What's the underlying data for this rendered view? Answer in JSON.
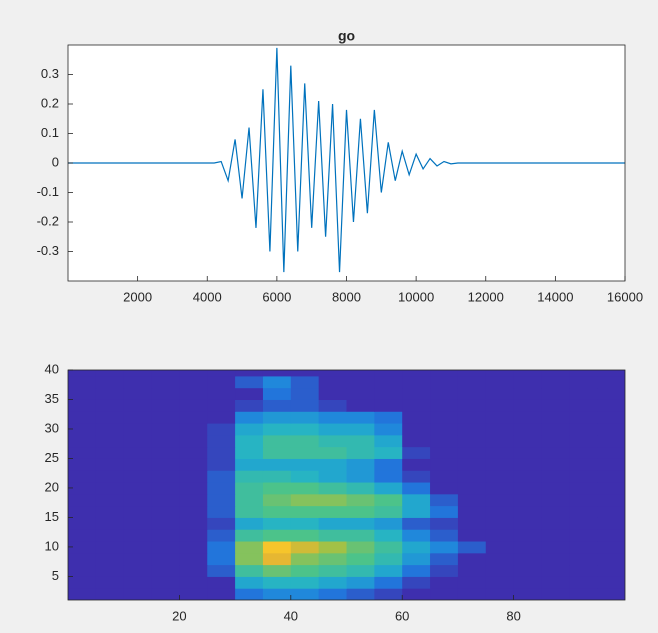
{
  "chart_data": [
    {
      "type": "line",
      "title": "go",
      "color": "#0072bd",
      "x": [
        0,
        200,
        400,
        600,
        800,
        1000,
        1200,
        1400,
        1600,
        1800,
        2000,
        2200,
        2400,
        2600,
        2800,
        3000,
        3200,
        3400,
        3600,
        3800,
        4000,
        4200,
        4400,
        4600,
        4800,
        5000,
        5200,
        5400,
        5600,
        5800,
        6000,
        6200,
        6400,
        6600,
        6800,
        7000,
        7200,
        7400,
        7600,
        7800,
        8000,
        8200,
        8400,
        8600,
        8800,
        9000,
        9200,
        9400,
        9600,
        9800,
        10000,
        10200,
        10400,
        10600,
        10800,
        11000,
        11200,
        11400,
        11600,
        11800,
        12000,
        12200,
        12400,
        12600,
        12800,
        13000,
        13200,
        13400,
        13600,
        13800,
        14000,
        14200,
        14400,
        14600,
        14800,
        15000,
        15200,
        15400,
        15600,
        15800,
        16000
      ],
      "values": [
        0,
        0,
        0,
        0,
        0,
        0,
        0,
        0,
        0,
        0,
        0,
        0,
        0,
        0,
        0,
        0,
        0,
        0,
        0,
        0,
        0,
        0,
        0.005,
        -0.06,
        0.08,
        -0.12,
        0.12,
        -0.22,
        0.25,
        -0.3,
        0.39,
        -0.37,
        0.33,
        -0.3,
        0.27,
        -0.22,
        0.21,
        -0.25,
        0.2,
        -0.37,
        0.18,
        -0.2,
        0.15,
        -0.17,
        0.18,
        -0.1,
        0.07,
        -0.06,
        0.04,
        -0.04,
        0.03,
        -0.02,
        0.015,
        -0.01,
        0.005,
        -0.003,
        0,
        0,
        0,
        0,
        0,
        0,
        0,
        0,
        0,
        0,
        0,
        0,
        0,
        0,
        0,
        0,
        0,
        0,
        0,
        0,
        0,
        0,
        0,
        0,
        0
      ],
      "xlim": [
        0,
        16000
      ],
      "ylim": [
        -0.4,
        0.4
      ],
      "xticks": [
        2000,
        4000,
        6000,
        8000,
        10000,
        12000,
        14000,
        16000
      ],
      "yticks": [
        -0.3,
        -0.2,
        -0.1,
        0,
        0.1,
        0.2,
        0.3
      ]
    },
    {
      "type": "heatmap",
      "x": [
        2.5,
        7.5,
        12.5,
        17.5,
        22.5,
        27.5,
        32.5,
        37.5,
        42.5,
        47.5,
        52.5,
        57.5,
        62.5,
        67.5,
        72.5,
        77.5,
        82.5,
        87.5,
        92.5,
        97.5
      ],
      "y": [
        2,
        4,
        6,
        8,
        10,
        12,
        14,
        16,
        18,
        20,
        22,
        24,
        26,
        28,
        30,
        32,
        34,
        36,
        38,
        40
      ],
      "values": [
        [
          0,
          0,
          0,
          0,
          0,
          0,
          0.15,
          0.2,
          0.2,
          0.15,
          0.1,
          0.05,
          0,
          0,
          0,
          0,
          0,
          0,
          0,
          0
        ],
        [
          0,
          0,
          0,
          0,
          0,
          0,
          0.3,
          0.35,
          0.35,
          0.3,
          0.25,
          0.15,
          0.05,
          0,
          0,
          0,
          0,
          0,
          0,
          0
        ],
        [
          0,
          0,
          0,
          0,
          0,
          0.1,
          0.45,
          0.55,
          0.5,
          0.45,
          0.4,
          0.3,
          0.15,
          0.05,
          0,
          0,
          0,
          0,
          0,
          0
        ],
        [
          0,
          0,
          0,
          0,
          0,
          0.15,
          0.6,
          0.8,
          0.6,
          0.55,
          0.5,
          0.4,
          0.25,
          0.1,
          0,
          0,
          0,
          0,
          0,
          0
        ],
        [
          0,
          0,
          0,
          0,
          0,
          0.15,
          0.6,
          0.9,
          0.75,
          0.65,
          0.55,
          0.45,
          0.3,
          0.2,
          0.1,
          0,
          0,
          0,
          0,
          0
        ],
        [
          0,
          0,
          0,
          0,
          0,
          0.1,
          0.45,
          0.5,
          0.5,
          0.45,
          0.45,
          0.35,
          0.2,
          0.1,
          0,
          0,
          0,
          0,
          0,
          0
        ],
        [
          0,
          0,
          0,
          0,
          0,
          0.05,
          0.3,
          0.35,
          0.35,
          0.3,
          0.3,
          0.25,
          0.1,
          0.05,
          0,
          0,
          0,
          0,
          0,
          0
        ],
        [
          0,
          0,
          0,
          0,
          0,
          0.1,
          0.45,
          0.5,
          0.5,
          0.5,
          0.5,
          0.45,
          0.3,
          0.15,
          0,
          0,
          0,
          0,
          0,
          0
        ],
        [
          0,
          0,
          0,
          0,
          0,
          0.1,
          0.45,
          0.55,
          0.6,
          0.6,
          0.55,
          0.5,
          0.3,
          0.1,
          0,
          0,
          0,
          0,
          0,
          0
        ],
        [
          0,
          0,
          0,
          0,
          0,
          0.1,
          0.45,
          0.5,
          0.5,
          0.45,
          0.4,
          0.3,
          0.15,
          0,
          0,
          0,
          0,
          0,
          0,
          0
        ],
        [
          0,
          0,
          0,
          0,
          0,
          0.1,
          0.4,
          0.4,
          0.35,
          0.3,
          0.25,
          0.15,
          0.05,
          0,
          0,
          0,
          0,
          0,
          0,
          0
        ],
        [
          0,
          0,
          0,
          0,
          0,
          0.05,
          0.3,
          0.3,
          0.3,
          0.3,
          0.25,
          0.15,
          0,
          0,
          0,
          0,
          0,
          0,
          0,
          0
        ],
        [
          0,
          0,
          0,
          0,
          0,
          0.05,
          0.35,
          0.45,
          0.45,
          0.45,
          0.4,
          0.35,
          0.05,
          0,
          0,
          0,
          0,
          0,
          0,
          0
        ],
        [
          0,
          0,
          0,
          0,
          0,
          0.05,
          0.35,
          0.45,
          0.45,
          0.4,
          0.4,
          0.3,
          0,
          0,
          0,
          0,
          0,
          0,
          0,
          0
        ],
        [
          0,
          0,
          0,
          0,
          0,
          0.05,
          0.3,
          0.35,
          0.35,
          0.3,
          0.3,
          0.2,
          0,
          0,
          0,
          0,
          0,
          0,
          0,
          0
        ],
        [
          0,
          0,
          0,
          0,
          0,
          0,
          0.2,
          0.25,
          0.25,
          0.2,
          0.2,
          0.15,
          0,
          0,
          0,
          0,
          0,
          0,
          0,
          0
        ],
        [
          0,
          0,
          0,
          0,
          0,
          0,
          0.05,
          0.1,
          0.1,
          0.05,
          0,
          0,
          0,
          0,
          0,
          0,
          0,
          0,
          0,
          0
        ],
        [
          0,
          0,
          0,
          0,
          0,
          0,
          0,
          0.15,
          0.1,
          0,
          0,
          0,
          0,
          0,
          0,
          0,
          0,
          0,
          0,
          0
        ],
        [
          0,
          0,
          0,
          0,
          0,
          0,
          0.1,
          0.2,
          0.1,
          0,
          0,
          0,
          0,
          0,
          0,
          0,
          0,
          0,
          0,
          0
        ],
        [
          0,
          0,
          0,
          0,
          0,
          0,
          0,
          0,
          0,
          0,
          0,
          0,
          0,
          0,
          0,
          0,
          0,
          0,
          0,
          0
        ]
      ],
      "clim": [
        0,
        1
      ],
      "colormap": [
        "#3e2fae",
        "#1f7de0",
        "#23b2c9",
        "#4cc38a",
        "#abc13f",
        "#f5b52f",
        "#f8de24"
      ],
      "xlim": [
        0,
        100
      ],
      "ylim": [
        1,
        40
      ],
      "xticks": [
        20,
        40,
        60,
        80
      ],
      "yticks": [
        5,
        10,
        15,
        20,
        25,
        30,
        35,
        40
      ]
    }
  ]
}
